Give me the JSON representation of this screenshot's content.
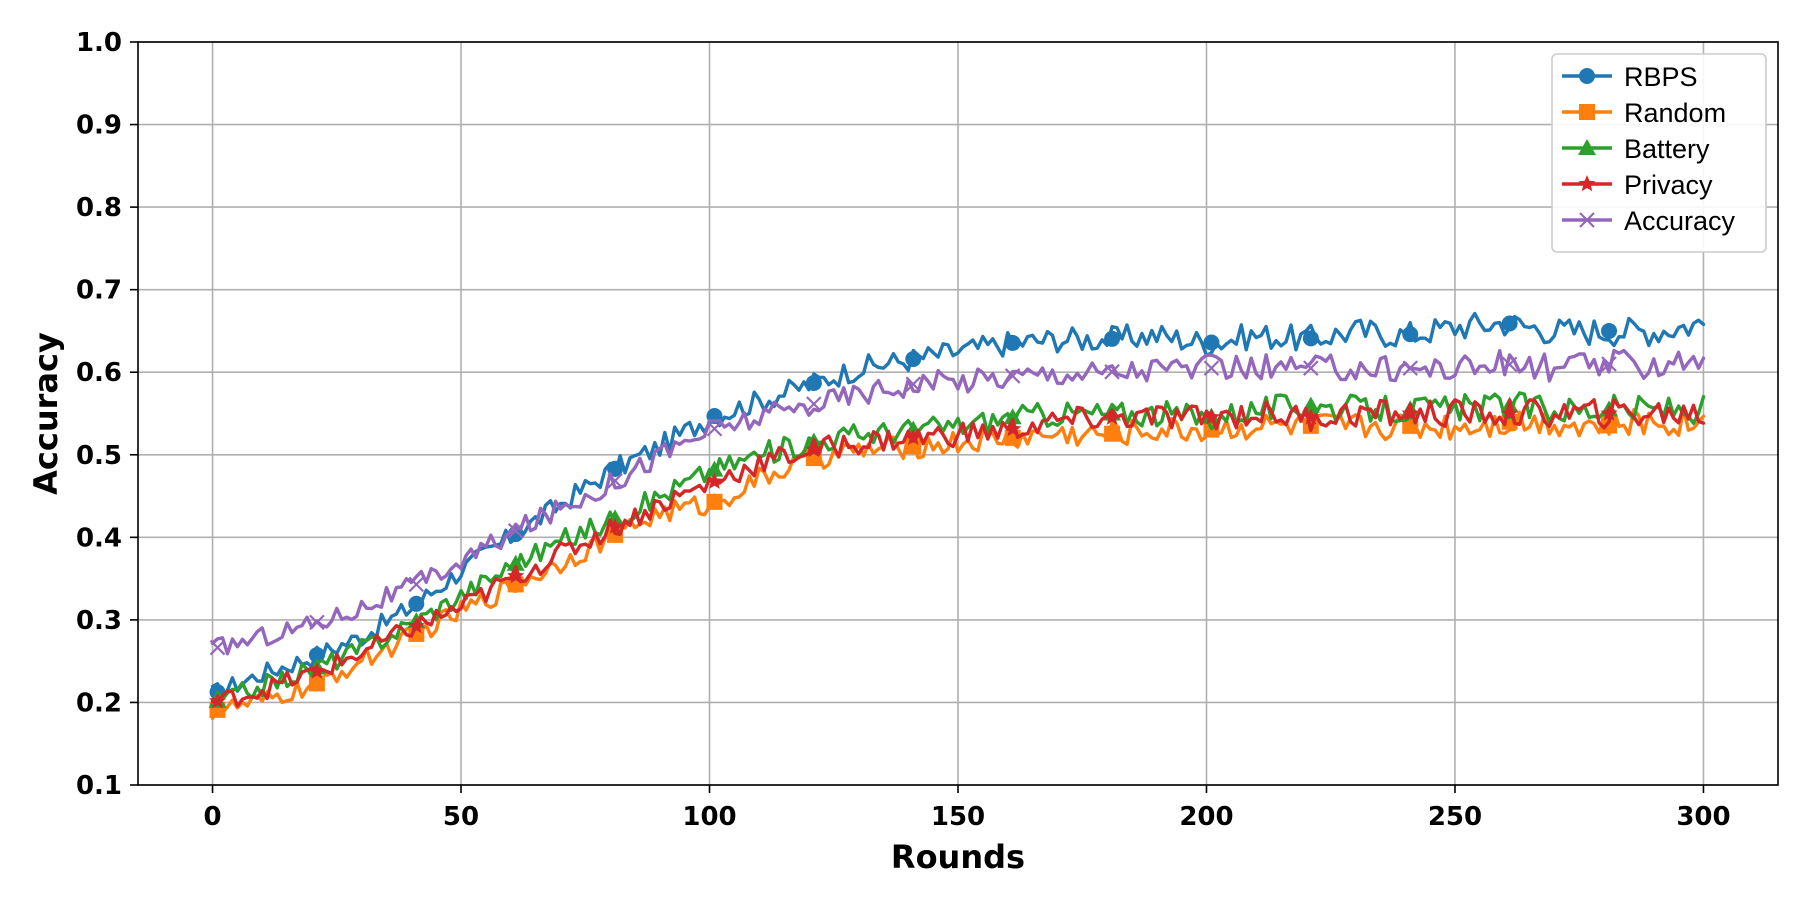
{
  "chart_data": {
    "type": "line",
    "title": "",
    "xlabel": "Rounds",
    "ylabel": "Accuracy",
    "xlim": [
      -15,
      315
    ],
    "ylim": [
      0.1,
      1.0
    ],
    "xticks": [
      0,
      50,
      100,
      150,
      200,
      250,
      300
    ],
    "yticks": [
      0.1,
      0.2,
      0.3,
      0.4,
      0.5,
      0.6,
      0.7,
      0.8,
      0.9,
      1.0
    ],
    "xtick_labels": [
      "0",
      "50",
      "100",
      "150",
      "200",
      "250",
      "300"
    ],
    "ytick_labels": [
      "0.1",
      "0.2",
      "0.3",
      "0.4",
      "0.5",
      "0.6",
      "0.7",
      "0.8",
      "0.9",
      "1.0"
    ],
    "grid": true,
    "legend_position": "top-right",
    "series": [
      {
        "name": "RBPS",
        "color": "#1f77b4",
        "marker": "circle",
        "markers_at": [
          1,
          21,
          41,
          61,
          81,
          101,
          121,
          141,
          161,
          181,
          201,
          221,
          241,
          261,
          281
        ],
        "x": [
          0,
          10,
          20,
          30,
          40,
          50,
          60,
          70,
          80,
          90,
          100,
          110,
          120,
          130,
          140,
          150,
          160,
          170,
          180,
          190,
          200,
          210,
          220,
          230,
          240,
          250,
          260,
          270,
          280,
          290,
          300
        ],
        "y": [
          0.21,
          0.235,
          0.255,
          0.28,
          0.315,
          0.36,
          0.4,
          0.44,
          0.48,
          0.51,
          0.545,
          0.565,
          0.585,
          0.605,
          0.615,
          0.625,
          0.635,
          0.64,
          0.64,
          0.645,
          0.635,
          0.645,
          0.64,
          0.65,
          0.645,
          0.655,
          0.66,
          0.65,
          0.65,
          0.65,
          0.66
        ]
      },
      {
        "name": "Random",
        "color": "#ff7f0e",
        "marker": "square",
        "markers_at": [
          1,
          21,
          41,
          61,
          81,
          101,
          121,
          141,
          161,
          181,
          201,
          221,
          241,
          261,
          281
        ],
        "x": [
          0,
          10,
          20,
          30,
          40,
          50,
          60,
          70,
          80,
          90,
          100,
          110,
          120,
          130,
          140,
          150,
          160,
          170,
          180,
          190,
          200,
          210,
          220,
          230,
          240,
          250,
          260,
          270,
          280,
          290,
          300
        ],
        "y": [
          0.19,
          0.2,
          0.22,
          0.25,
          0.28,
          0.31,
          0.34,
          0.37,
          0.4,
          0.43,
          0.44,
          0.47,
          0.495,
          0.505,
          0.51,
          0.515,
          0.52,
          0.525,
          0.525,
          0.53,
          0.53,
          0.535,
          0.535,
          0.535,
          0.535,
          0.535,
          0.54,
          0.54,
          0.535,
          0.54,
          0.54
        ]
      },
      {
        "name": "Battery",
        "color": "#2ca02c",
        "marker": "triangle",
        "markers_at": [
          1,
          21,
          41,
          61,
          81,
          101,
          121,
          141,
          161,
          181,
          201,
          221,
          241,
          261,
          281
        ],
        "x": [
          0,
          10,
          20,
          30,
          40,
          50,
          60,
          70,
          80,
          90,
          100,
          110,
          120,
          130,
          140,
          150,
          160,
          170,
          180,
          190,
          200,
          210,
          220,
          230,
          240,
          250,
          260,
          270,
          280,
          290,
          300
        ],
        "y": [
          0.2,
          0.22,
          0.24,
          0.265,
          0.295,
          0.33,
          0.365,
          0.395,
          0.42,
          0.45,
          0.48,
          0.5,
          0.515,
          0.525,
          0.53,
          0.535,
          0.545,
          0.55,
          0.55,
          0.55,
          0.545,
          0.555,
          0.56,
          0.555,
          0.555,
          0.555,
          0.56,
          0.555,
          0.555,
          0.555,
          0.555
        ]
      },
      {
        "name": "Privacy",
        "color": "#d62728",
        "marker": "star",
        "markers_at": [
          1,
          21,
          41,
          61,
          81,
          101,
          121,
          141,
          161,
          181,
          201,
          221,
          241,
          261,
          281
        ],
        "x": [
          0,
          10,
          20,
          30,
          40,
          50,
          60,
          70,
          80,
          90,
          100,
          110,
          120,
          130,
          140,
          150,
          160,
          170,
          180,
          190,
          200,
          210,
          220,
          230,
          240,
          250,
          260,
          270,
          280,
          290,
          300
        ],
        "y": [
          0.2,
          0.215,
          0.235,
          0.26,
          0.29,
          0.315,
          0.35,
          0.38,
          0.41,
          0.44,
          0.465,
          0.49,
          0.505,
          0.515,
          0.52,
          0.525,
          0.53,
          0.54,
          0.545,
          0.545,
          0.545,
          0.55,
          0.545,
          0.55,
          0.55,
          0.55,
          0.55,
          0.55,
          0.55,
          0.55,
          0.55
        ]
      },
      {
        "name": "Accuracy",
        "color": "#9467bd",
        "marker": "x",
        "markers_at": [
          1,
          21,
          41,
          61,
          81,
          101,
          121,
          141,
          161,
          181,
          201,
          221,
          241,
          261,
          281
        ],
        "x": [
          0,
          10,
          20,
          30,
          40,
          50,
          60,
          70,
          80,
          90,
          100,
          110,
          120,
          130,
          140,
          150,
          160,
          170,
          180,
          190,
          200,
          210,
          220,
          230,
          240,
          250,
          260,
          270,
          280,
          290,
          300
        ],
        "y": [
          0.265,
          0.28,
          0.295,
          0.315,
          0.34,
          0.37,
          0.405,
          0.435,
          0.465,
          0.5,
          0.53,
          0.545,
          0.56,
          0.575,
          0.585,
          0.59,
          0.595,
          0.6,
          0.6,
          0.605,
          0.605,
          0.605,
          0.605,
          0.605,
          0.605,
          0.605,
          0.61,
          0.605,
          0.61,
          0.61,
          0.62
        ]
      }
    ]
  }
}
